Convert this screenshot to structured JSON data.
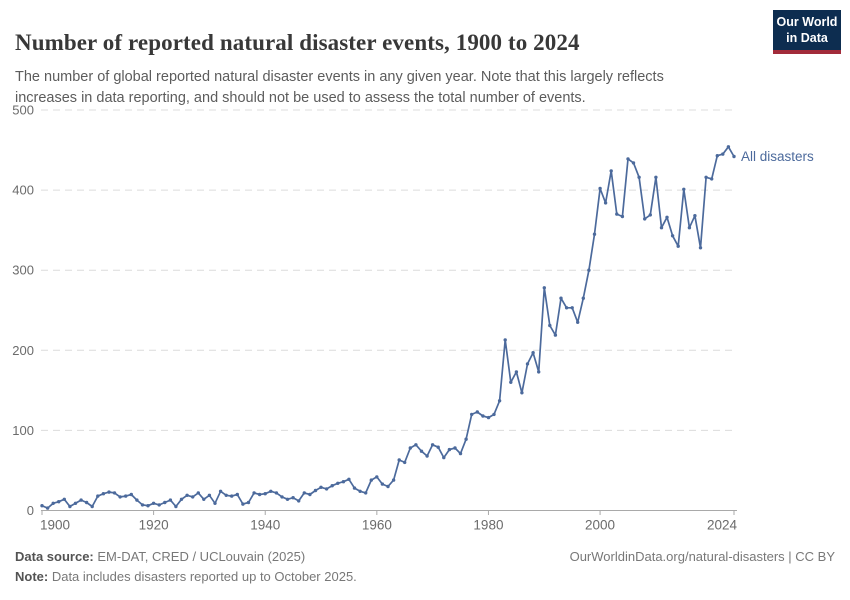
{
  "header": {
    "title": "Number of reported natural disaster events, 1900 to 2024",
    "subtitle": "The number of global reported natural disaster events in any given year. Note that this largely reflects increases in data reporting, and should not be used to assess the total number of events.",
    "logo": {
      "line1": "Our World",
      "line2": "in Data"
    }
  },
  "footer": {
    "source_label": "Data source:",
    "source_text": " EM-DAT, CRED / UCLouvain (2025)",
    "note_label": "Note:",
    "note_text": " Data includes disasters reported up to October 2025.",
    "link_text": "OurWorldinData.org/natural-disasters | CC BY"
  },
  "colors": {
    "line": "#4C6A9C",
    "gridline": "#dcdcdc",
    "axis": "#a9a9a9",
    "tick_label": "#6b6b6b",
    "logo_navy": "#0d2d50",
    "logo_red": "#a22b3a"
  },
  "chart_data": {
    "type": "line",
    "title": "Number of reported natural disaster events, 1900 to 2024",
    "xlabel": "",
    "ylabel": "",
    "xlim": [
      1900,
      2024
    ],
    "ylim": [
      0,
      500
    ],
    "x_ticks": [
      1900,
      1920,
      1940,
      1960,
      1980,
      2000,
      2024
    ],
    "y_ticks": [
      0,
      100,
      200,
      300,
      400,
      500
    ],
    "grid": "horizontal-dashed",
    "legend_position": "end-of-line-label",
    "x_step_years": 1,
    "series": [
      {
        "name": "All disasters",
        "color": "#4C6A9C",
        "x_start": 1900,
        "x_end": 2024,
        "values": [
          6,
          3,
          9,
          11,
          14,
          5,
          9,
          13,
          10,
          5,
          18,
          21,
          23,
          22,
          17,
          18,
          20,
          13,
          7,
          6,
          9,
          7,
          10,
          13,
          5,
          14,
          19,
          17,
          22,
          14,
          19,
          9,
          24,
          19,
          18,
          20,
          8,
          10,
          22,
          20,
          21,
          24,
          22,
          17,
          14,
          16,
          12,
          22,
          20,
          25,
          29,
          27,
          31,
          34,
          36,
          39,
          28,
          24,
          22,
          38,
          42,
          33,
          30,
          38,
          63,
          60,
          78,
          82,
          74,
          68,
          82,
          79,
          66,
          76,
          78,
          71,
          89,
          120,
          123,
          118,
          116,
          120,
          137,
          213,
          160,
          173,
          147,
          183,
          197,
          173,
          278,
          231,
          219,
          265,
          253,
          253,
          235,
          265,
          300,
          345,
          402,
          384,
          424,
          370,
          367,
          439,
          434,
          416,
          364,
          369,
          416,
          353,
          366,
          343,
          330,
          401,
          353,
          368,
          328,
          416,
          414,
          443,
          445,
          454,
          442
        ]
      }
    ]
  }
}
